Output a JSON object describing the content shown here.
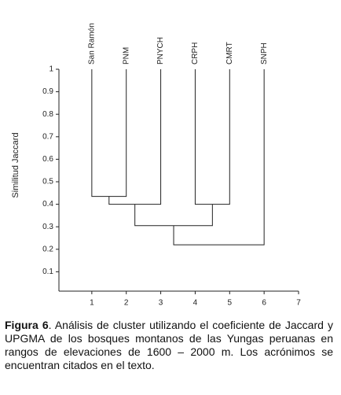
{
  "chart_data": {
    "type": "dendrogram",
    "y_label": "Similitud Jaccard",
    "leaves": [
      "San Ramón",
      "PNM",
      "PNYCH",
      "CRPH",
      "CMRT",
      "SNPH"
    ],
    "x": [
      1,
      2,
      3,
      4,
      5,
      6
    ],
    "merges": [
      {
        "children": [
          0,
          1
        ],
        "height": 0.435
      },
      {
        "children": [
          6,
          2
        ],
        "height": 0.4
      },
      {
        "children": [
          3,
          4
        ],
        "height": 0.4
      },
      {
        "children": [
          7,
          8
        ],
        "height": 0.305
      },
      {
        "children": [
          9,
          5
        ],
        "height": 0.22
      }
    ],
    "xlim": [
      0,
      7
    ],
    "xticks": [
      1,
      2,
      3,
      4,
      5,
      6,
      7
    ],
    "ylim": [
      0,
      1
    ],
    "yticks": [
      0.1,
      0.2,
      0.3,
      0.4,
      0.5,
      0.6,
      0.7,
      0.8,
      0.9,
      1
    ]
  },
  "caption": {
    "label": "Figura 6",
    "text": ". Análisis de cluster utilizando el coeficiente de Jaccard y UPGMA de los bosques montanos de las Yungas peruanas en rangos de elevaciones de 1600 – 2000 m. Los acrónimos se encuentran citados en el texto."
  }
}
